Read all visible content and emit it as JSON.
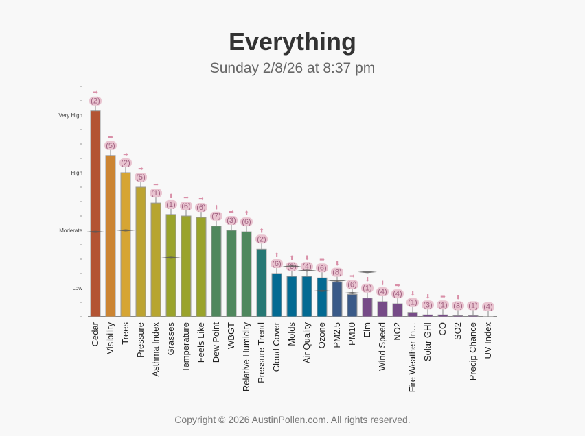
{
  "chart_data": {
    "type": "bar",
    "title": "Everything",
    "subtitle": "Sunday 2/8/26 at 8:37 pm",
    "footer": "Copyright © 2026 AustinPollen.com.  All rights reserved.",
    "ylim": [
      0,
      16
    ],
    "y_levels": [
      {
        "label": "Low",
        "value": 2
      },
      {
        "label": "Moderate",
        "value": 6
      },
      {
        "label": "High",
        "value": 10
      },
      {
        "label": "Very High",
        "value": 14
      }
    ],
    "categories": [
      "Cedar",
      "Visibility",
      "Trees",
      "Pressure",
      "Asthma Index",
      "Grasses",
      "Temperature",
      "Feels Like",
      "Dew Point",
      "WBGT",
      "Relative Humidity",
      "Pressure Trend",
      "Cloud Cover",
      "Molds",
      "Air Quality",
      "Ozone",
      "PM2.5",
      "PM10",
      "Elm",
      "Wind Speed",
      "NO2",
      "Fire Weather In…",
      "Solar GHI",
      "CO",
      "SO2",
      "Precip Chance",
      "UV Index"
    ],
    "values": [
      14.3,
      11.2,
      10.0,
      9.0,
      7.9,
      7.1,
      7.0,
      6.9,
      6.3,
      6.0,
      5.9,
      4.7,
      3.0,
      2.8,
      2.8,
      2.7,
      2.4,
      1.55,
      1.3,
      1.05,
      0.9,
      0.3,
      0.13,
      0.13,
      0.08,
      0.08,
      0.0
    ],
    "badges": [
      "(2)",
      "(5)",
      "(2)",
      "(5)",
      "(1)",
      "(1)",
      "(6)",
      "(6)",
      "(7)",
      "(3)",
      "(6)",
      "(2)",
      "(6)",
      "(3)",
      "(4)",
      "(6)",
      "(8)",
      "(6)",
      "(1)",
      "(4)",
      "(4)",
      "(1)",
      "(3)",
      "(1)",
      "(3)",
      "(1)",
      "(4)"
    ],
    "trends": [
      "right",
      "right",
      "right",
      "right",
      "right",
      "up",
      "right",
      "right",
      "up",
      "right",
      "up",
      "up",
      "up",
      "up",
      "down",
      "right",
      "down",
      "right",
      "down",
      "down",
      "right",
      "down",
      "down",
      "right",
      "down",
      "none",
      "none"
    ],
    "average_markers": [
      5.9,
      null,
      6.0,
      null,
      null,
      4.1,
      null,
      null,
      null,
      null,
      null,
      null,
      null,
      3.5,
      3.2,
      1.8,
      2.5,
      1.65,
      3.1,
      null,
      null,
      null,
      null,
      null,
      null,
      null,
      null
    ],
    "colors": [
      "#b35433",
      "#cc8533",
      "#d6a533",
      "#bca331",
      "#b7a530",
      "#9aa32b",
      "#9aa32b",
      "#9aa32b",
      "#4f875d",
      "#4f875d",
      "#4f875d",
      "#277874",
      "#036a92",
      "#036a92",
      "#036a92",
      "#036a92",
      "#3a5a88",
      "#3a5a88",
      "#764b87",
      "#764b87",
      "#764b87",
      "#764b87",
      "#764b87",
      "#764b87",
      "#764b87",
      "#764b87",
      "#764b87"
    ],
    "badge_color": "#d98fa8"
  }
}
